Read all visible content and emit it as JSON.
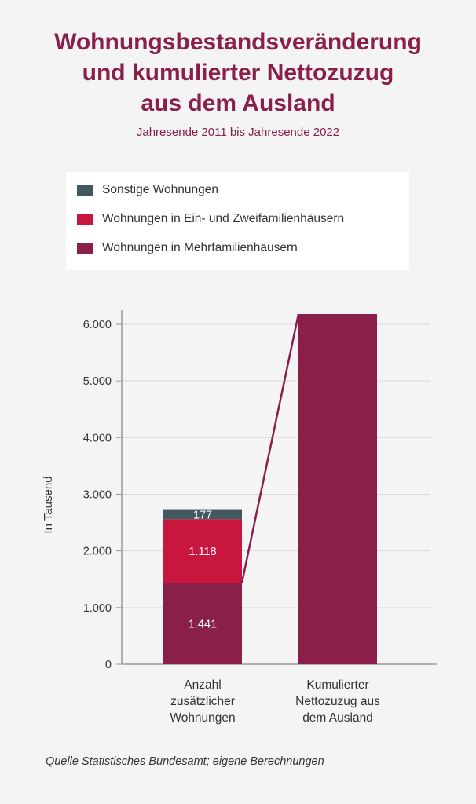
{
  "title_lines": [
    "Wohnungsbestandsveränderung",
    "und kumulierter Nettozuzug",
    "aus dem Ausland"
  ],
  "subtitle": "Jahresende 2011 bis Jahresende 2022",
  "legend": [
    {
      "label": "Sonstige Wohnungen",
      "color": "#45575e"
    },
    {
      "label": "Wohnungen in Ein- und Zweifamilienhäusern",
      "color": "#c8163f"
    },
    {
      "label": "Wohnungen in Mehrfamilienhäusern",
      "color": "#8a1f4a"
    }
  ],
  "chart_data": {
    "type": "bar",
    "stacked": true,
    "ylabel": "In Tausend",
    "ylim": [
      0,
      6000
    ],
    "yticks": [
      0,
      1000,
      2000,
      3000,
      4000,
      5000,
      6000
    ],
    "ytick_labels": [
      "0",
      "1.000",
      "2.000",
      "3.000",
      "4.000",
      "5.000",
      "6.000"
    ],
    "grid": true,
    "legend_position": "top",
    "categories": [
      [
        "Anzahl",
        "zusätzlicher",
        "Wohnungen"
      ],
      [
        "Kumulierter",
        "Nettozuzug aus",
        "dem Ausland"
      ]
    ],
    "bars": [
      {
        "segments": [
          {
            "series": "Wohnungen in Mehrfamilienhäusern",
            "value": 1441,
            "label": "1.441",
            "color": "#8a1f4a"
          },
          {
            "series": "Wohnungen in Ein- und Zweifamilienhäusern",
            "value": 1118,
            "label": "1.118",
            "color": "#c8163f"
          },
          {
            "series": "Sonstige Wohnungen",
            "value": 177,
            "label": "177",
            "color": "#45575e"
          }
        ]
      },
      {
        "segments": [
          {
            "series": "Kumulierter Nettozuzug aus dem Ausland",
            "value": 6180,
            "label": "",
            "color": "#8a1f4a"
          }
        ]
      }
    ],
    "connector_color": "#8a1f4a"
  },
  "footer": "Quelle Statistisches Bundesamt; eigene Berechnungen"
}
